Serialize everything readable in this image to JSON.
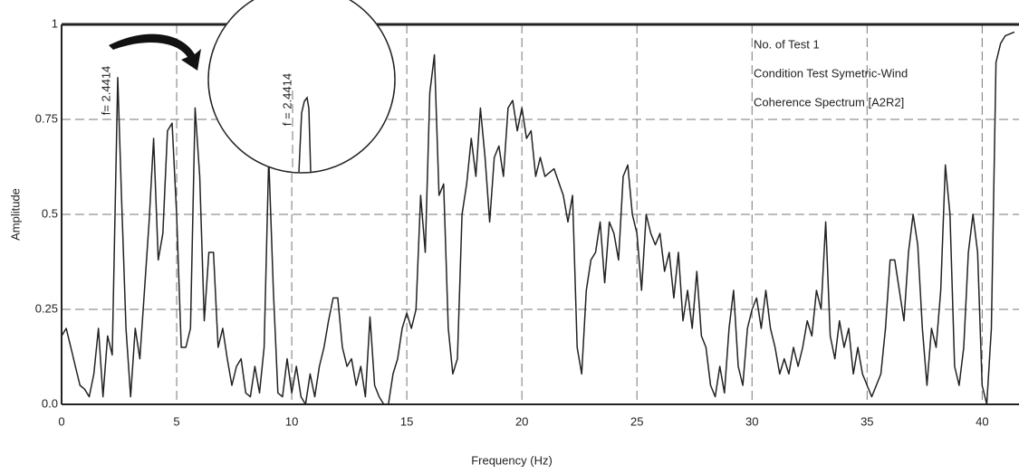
{
  "chart_data": {
    "type": "line",
    "xlabel": "Frequency (Hz)",
    "ylabel": "Amplitude",
    "annotations": [
      "f= 2.4414",
      "f = 2.4414"
    ],
    "legend_lines": [
      "No. of Test 1",
      "Condition Test Symetric-Wind",
      "Coherence Spectrum [A2R2]"
    ],
    "color": "#222222",
    "grid": true,
    "xlim": [
      0,
      41.6
    ],
    "ylim": [
      0,
      1
    ],
    "xticks": [
      0,
      5,
      10,
      15,
      20,
      25,
      30,
      35,
      40
    ],
    "yticks": [
      {
        "value": 0,
        "label": "0.0"
      },
      0.25,
      0.5,
      0.75,
      1
    ],
    "x": [
      0,
      0.2,
      0.4,
      0.6,
      0.8,
      1.0,
      1.2,
      1.4,
      1.6,
      1.8,
      2.0,
      2.2,
      2.44,
      2.6,
      2.8,
      3.0,
      3.2,
      3.4,
      3.6,
      3.8,
      4.0,
      4.2,
      4.4,
      4.6,
      4.8,
      5.0,
      5.2,
      5.4,
      5.6,
      5.8,
      6.0,
      6.2,
      6.4,
      6.6,
      6.8,
      7.0,
      7.2,
      7.4,
      7.6,
      7.8,
      8.0,
      8.2,
      8.4,
      8.6,
      8.8,
      9.0,
      9.2,
      9.4,
      9.6,
      9.8,
      10.0,
      10.2,
      10.4,
      10.6,
      10.8,
      11.0,
      11.2,
      11.4,
      11.6,
      11.8,
      12.0,
      12.2,
      12.4,
      12.6,
      12.8,
      13.0,
      13.2,
      13.4,
      13.6,
      13.8,
      14.0,
      14.2,
      14.4,
      14.6,
      14.8,
      15.0,
      15.2,
      15.4,
      15.6,
      15.8,
      16.0,
      16.2,
      16.4,
      16.6,
      16.8,
      17.0,
      17.2,
      17.4,
      17.6,
      17.8,
      18.0,
      18.2,
      18.4,
      18.6,
      18.8,
      19.0,
      19.2,
      19.4,
      19.6,
      19.8,
      20.0,
      20.2,
      20.4,
      20.6,
      20.8,
      21.0,
      21.4,
      21.8,
      22.0,
      22.2,
      22.4,
      22.6,
      22.8,
      23.0,
      23.2,
      23.4,
      23.6,
      23.8,
      24.0,
      24.2,
      24.4,
      24.6,
      24.8,
      25.0,
      25.2,
      25.4,
      25.6,
      25.8,
      26.0,
      26.2,
      26.4,
      26.6,
      26.8,
      27.0,
      27.2,
      27.4,
      27.6,
      27.8,
      28.0,
      28.2,
      28.4,
      28.6,
      28.8,
      29.0,
      29.2,
      29.4,
      29.6,
      29.8,
      30.0,
      30.2,
      30.4,
      30.6,
      30.8,
      31.0,
      31.2,
      31.4,
      31.6,
      31.8,
      32.0,
      32.2,
      32.4,
      32.6,
      32.8,
      33.0,
      33.2,
      33.4,
      33.6,
      33.8,
      34.0,
      34.2,
      34.4,
      34.6,
      34.8,
      35.0,
      35.2,
      35.4,
      35.6,
      35.8,
      36.0,
      36.2,
      36.4,
      36.6,
      36.8,
      37.0,
      37.2,
      37.4,
      37.6,
      37.8,
      38.0,
      38.2,
      38.4,
      38.6,
      38.8,
      39.0,
      39.2,
      39.4,
      39.6,
      39.8,
      40.0,
      40.2,
      40.4,
      40.6,
      40.8,
      41.0,
      41.4
    ],
    "values": [
      0.18,
      0.2,
      0.15,
      0.1,
      0.05,
      0.04,
      0.02,
      0.08,
      0.2,
      0.02,
      0.18,
      0.13,
      0.86,
      0.55,
      0.2,
      0.02,
      0.2,
      0.12,
      0.3,
      0.48,
      0.7,
      0.38,
      0.45,
      0.72,
      0.74,
      0.5,
      0.15,
      0.15,
      0.2,
      0.78,
      0.6,
      0.22,
      0.4,
      0.4,
      0.15,
      0.2,
      0.12,
      0.05,
      0.1,
      0.12,
      0.03,
      0.02,
      0.1,
      0.03,
      0.15,
      0.65,
      0.3,
      0.03,
      0.02,
      0.12,
      0.03,
      0.1,
      0.02,
      0.0,
      0.08,
      0.02,
      0.1,
      0.15,
      0.22,
      0.28,
      0.28,
      0.15,
      0.1,
      0.12,
      0.05,
      0.1,
      0.02,
      0.23,
      0.05,
      0.02,
      0.0,
      0.0,
      0.08,
      0.12,
      0.2,
      0.24,
      0.2,
      0.25,
      0.55,
      0.4,
      0.82,
      0.92,
      0.55,
      0.58,
      0.2,
      0.08,
      0.12,
      0.5,
      0.58,
      0.7,
      0.6,
      0.78,
      0.65,
      0.48,
      0.65,
      0.68,
      0.6,
      0.78,
      0.8,
      0.72,
      0.78,
      0.7,
      0.72,
      0.6,
      0.65,
      0.6,
      0.62,
      0.55,
      0.48,
      0.55,
      0.15,
      0.08,
      0.3,
      0.38,
      0.4,
      0.48,
      0.32,
      0.48,
      0.45,
      0.38,
      0.6,
      0.63,
      0.5,
      0.45,
      0.3,
      0.5,
      0.45,
      0.42,
      0.45,
      0.35,
      0.4,
      0.28,
      0.4,
      0.22,
      0.3,
      0.2,
      0.35,
      0.18,
      0.15,
      0.05,
      0.02,
      0.1,
      0.03,
      0.2,
      0.3,
      0.1,
      0.05,
      0.2,
      0.25,
      0.28,
      0.2,
      0.3,
      0.2,
      0.15,
      0.08,
      0.12,
      0.08,
      0.15,
      0.1,
      0.15,
      0.22,
      0.18,
      0.3,
      0.25,
      0.48,
      0.18,
      0.12,
      0.22,
      0.15,
      0.2,
      0.08,
      0.15,
      0.08,
      0.05,
      0.02,
      0.05,
      0.08,
      0.2,
      0.38,
      0.38,
      0.3,
      0.22,
      0.4,
      0.5,
      0.42,
      0.2,
      0.05,
      0.2,
      0.15,
      0.3,
      0.63,
      0.5,
      0.1,
      0.05,
      0.15,
      0.4,
      0.5,
      0.4,
      0.05,
      0.0,
      0.2,
      0.9,
      0.95,
      0.97,
      0.98
    ]
  }
}
